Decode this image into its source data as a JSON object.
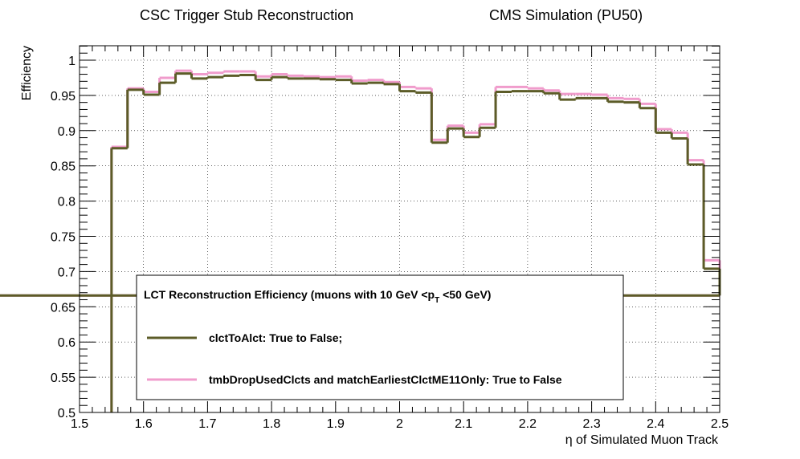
{
  "header": {
    "title_left": "CSC Trigger Stub Reconstruction",
    "title_right": "CMS Simulation (PU50)"
  },
  "chart_data": {
    "type": "line",
    "style": "step-histogram",
    "xlabel": "η of Simulated Muon Track",
    "ylabel": "Efficiency",
    "xlim": [
      1.5,
      2.5
    ],
    "ylim": [
      0.5,
      1.02
    ],
    "x_ticks": [
      1.5,
      1.6,
      1.7,
      1.8,
      1.9,
      2.0,
      2.1,
      2.2,
      2.3,
      2.4,
      2.5
    ],
    "x_tick_labels": [
      "1.5",
      "1.6",
      "1.7",
      "1.8",
      "1.9",
      "2",
      "2.1",
      "2.2",
      "2.3",
      "2.4",
      "2.5"
    ],
    "y_ticks": [
      0.5,
      0.55,
      0.6,
      0.65,
      0.7,
      0.75,
      0.8,
      0.85,
      0.9,
      0.95,
      1.0
    ],
    "y_tick_labels": [
      "0.5",
      "0.55",
      "0.6",
      "0.65",
      "0.7",
      "0.75",
      "0.8",
      "0.85",
      "0.9",
      "0.95",
      "1"
    ],
    "grid": true,
    "bin_edges": [
      1.55,
      1.575,
      1.6,
      1.625,
      1.65,
      1.675,
      1.7,
      1.725,
      1.75,
      1.775,
      1.8,
      1.825,
      1.85,
      1.875,
      1.9,
      1.925,
      1.95,
      1.975,
      2.0,
      2.025,
      2.05,
      2.075,
      2.1,
      2.125,
      2.15,
      2.175,
      2.2,
      2.225,
      2.25,
      2.275,
      2.3,
      2.325,
      2.35,
      2.375,
      2.4,
      2.425,
      2.45,
      2.475,
      2.5
    ],
    "series": [
      {
        "name": "clctToAlct: True to False;",
        "color": "#5c5c28",
        "values": [
          0.875,
          0.958,
          0.951,
          0.968,
          0.981,
          0.974,
          0.976,
          0.978,
          0.979,
          0.972,
          0.976,
          0.974,
          0.974,
          0.973,
          0.972,
          0.967,
          0.968,
          0.966,
          0.956,
          0.954,
          0.883,
          0.903,
          0.891,
          0.904,
          0.955,
          0.956,
          0.956,
          0.953,
          0.944,
          0.946,
          0.946,
          0.941,
          0.94,
          0.932,
          0.897,
          0.889,
          0.852,
          0.704,
          0.666
        ]
      },
      {
        "name": "tmbDropUsedClcts and matchEarliestClctME11Only: True to False",
        "color": "#f09ccc",
        "values": [
          0.877,
          0.96,
          0.955,
          0.975,
          0.985,
          0.98,
          0.982,
          0.984,
          0.984,
          0.977,
          0.98,
          0.978,
          0.977,
          0.976,
          0.977,
          0.971,
          0.972,
          0.969,
          0.962,
          0.96,
          0.887,
          0.907,
          0.897,
          0.909,
          0.962,
          0.962,
          0.96,
          0.957,
          0.952,
          0.952,
          0.951,
          0.946,
          0.945,
          0.938,
          0.902,
          0.897,
          0.858,
          0.716,
          0.666
        ]
      }
    ],
    "legend": {
      "title": "LCT Reconstruction Efficiency  (muons with 10 GeV <p",
      "title_sub": "T",
      "title_end": " <50 GeV)",
      "placement": "lower-left"
    }
  }
}
